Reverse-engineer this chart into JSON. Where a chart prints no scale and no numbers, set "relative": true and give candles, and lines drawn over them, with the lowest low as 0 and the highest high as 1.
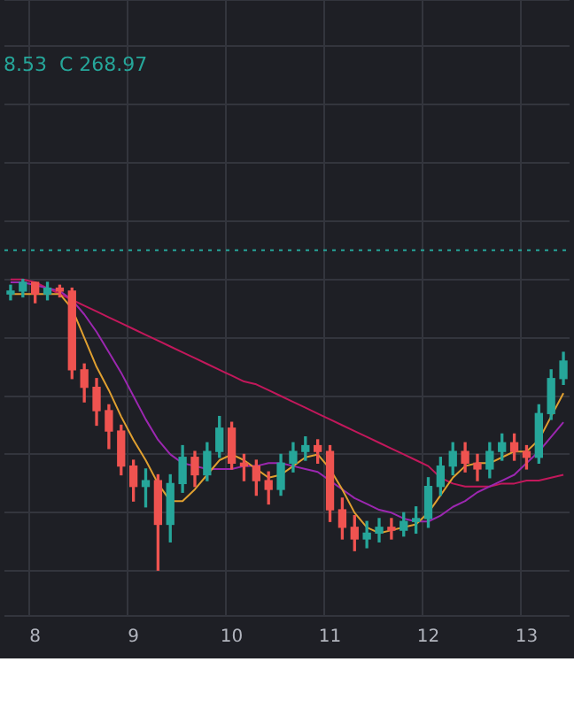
{
  "chart_data": {
    "type": "candlestick",
    "relative": true,
    "annotations": [
      "8.53  C 268.97"
    ],
    "categories": [
      null,
      null,
      "8",
      null,
      null,
      null,
      null,
      null,
      null,
      null,
      "9",
      null,
      null,
      null,
      null,
      null,
      null,
      null,
      "10",
      null,
      null,
      null,
      null,
      null,
      null,
      null,
      "11",
      null,
      null,
      null,
      null,
      null,
      null,
      null,
      "12",
      null,
      null,
      null,
      null,
      null,
      null,
      null,
      "13",
      null,
      null,
      null
    ],
    "ohlc": [
      [
        0.95,
        0.98,
        0.93,
        0.96
      ],
      [
        0.96,
        1.0,
        0.94,
        0.99
      ],
      [
        0.99,
        0.99,
        0.92,
        0.95
      ],
      [
        0.95,
        0.99,
        0.93,
        0.97
      ],
      [
        0.97,
        0.98,
        0.94,
        0.96
      ],
      [
        0.96,
        0.97,
        0.66,
        0.69
      ],
      [
        0.69,
        0.71,
        0.58,
        0.63
      ],
      [
        0.63,
        0.66,
        0.5,
        0.55
      ],
      [
        0.55,
        0.57,
        0.42,
        0.48
      ],
      [
        0.48,
        0.5,
        0.33,
        0.36
      ],
      [
        0.36,
        0.38,
        0.24,
        0.29
      ],
      [
        0.29,
        0.35,
        0.22,
        0.31
      ],
      [
        0.31,
        0.33,
        0.0,
        0.16
      ],
      [
        0.16,
        0.33,
        0.1,
        0.3
      ],
      [
        0.3,
        0.43,
        0.27,
        0.39
      ],
      [
        0.39,
        0.41,
        0.29,
        0.33
      ],
      [
        0.33,
        0.44,
        0.31,
        0.41
      ],
      [
        0.41,
        0.53,
        0.39,
        0.49
      ],
      [
        0.49,
        0.51,
        0.35,
        0.37
      ],
      [
        0.37,
        0.4,
        0.31,
        0.36
      ],
      [
        0.36,
        0.38,
        0.26,
        0.31
      ],
      [
        0.31,
        0.34,
        0.23,
        0.28
      ],
      [
        0.28,
        0.4,
        0.26,
        0.37
      ],
      [
        0.37,
        0.44,
        0.34,
        0.41
      ],
      [
        0.41,
        0.46,
        0.38,
        0.43
      ],
      [
        0.43,
        0.45,
        0.37,
        0.41
      ],
      [
        0.41,
        0.43,
        0.17,
        0.21
      ],
      [
        0.21,
        0.25,
        0.11,
        0.15
      ],
      [
        0.15,
        0.19,
        0.07,
        0.11
      ],
      [
        0.11,
        0.17,
        0.08,
        0.13
      ],
      [
        0.13,
        0.18,
        0.1,
        0.15
      ],
      [
        0.15,
        0.18,
        0.11,
        0.14
      ],
      [
        0.14,
        0.2,
        0.12,
        0.17
      ],
      [
        0.17,
        0.22,
        0.13,
        0.18
      ],
      [
        0.18,
        0.32,
        0.15,
        0.29
      ],
      [
        0.29,
        0.39,
        0.26,
        0.36
      ],
      [
        0.36,
        0.44,
        0.33,
        0.41
      ],
      [
        0.41,
        0.44,
        0.34,
        0.37
      ],
      [
        0.37,
        0.4,
        0.31,
        0.35
      ],
      [
        0.35,
        0.44,
        0.32,
        0.41
      ],
      [
        0.41,
        0.47,
        0.38,
        0.44
      ],
      [
        0.44,
        0.47,
        0.38,
        0.41
      ],
      [
        0.41,
        0.43,
        0.35,
        0.39
      ],
      [
        0.39,
        0.57,
        0.37,
        0.54
      ],
      [
        0.54,
        0.69,
        0.52,
        0.66
      ],
      [
        0.66,
        0.75,
        0.64,
        0.72
      ]
    ],
    "series": [
      {
        "type": "line",
        "color": "#e0a030",
        "values": [
          0.95,
          0.95,
          0.95,
          0.95,
          0.95,
          0.9,
          0.8,
          0.7,
          0.62,
          0.53,
          0.45,
          0.38,
          0.3,
          0.24,
          0.24,
          0.28,
          0.33,
          0.38,
          0.4,
          0.38,
          0.35,
          0.32,
          0.33,
          0.36,
          0.39,
          0.4,
          0.35,
          0.28,
          0.2,
          0.15,
          0.13,
          0.14,
          0.15,
          0.16,
          0.2,
          0.26,
          0.32,
          0.36,
          0.37,
          0.37,
          0.39,
          0.41,
          0.41,
          0.45,
          0.53,
          0.61
        ]
      },
      {
        "type": "line",
        "color": "#9c27b0",
        "values": [
          0.99,
          0.99,
          0.98,
          0.97,
          0.96,
          0.93,
          0.88,
          0.82,
          0.75,
          0.68,
          0.6,
          0.52,
          0.45,
          0.4,
          0.37,
          0.36,
          0.35,
          0.35,
          0.35,
          0.36,
          0.36,
          0.37,
          0.37,
          0.36,
          0.35,
          0.34,
          0.31,
          0.28,
          0.25,
          0.23,
          0.21,
          0.2,
          0.18,
          0.17,
          0.17,
          0.19,
          0.22,
          0.24,
          0.27,
          0.29,
          0.31,
          0.33,
          0.37,
          0.41,
          0.46,
          0.51
        ]
      },
      {
        "type": "line",
        "color": "#c2185b",
        "values": [
          1.0,
          1.0,
          0.99,
          0.97,
          0.95,
          0.93,
          0.91,
          0.89,
          0.87,
          0.85,
          0.83,
          0.81,
          0.79,
          0.77,
          0.75,
          0.73,
          0.71,
          0.69,
          0.67,
          0.65,
          0.64,
          0.62,
          0.6,
          0.58,
          0.56,
          0.54,
          0.52,
          0.5,
          0.48,
          0.46,
          0.44,
          0.42,
          0.4,
          0.38,
          0.36,
          0.32,
          0.3,
          0.29,
          0.29,
          0.29,
          0.3,
          0.3,
          0.31,
          0.31,
          0.32,
          0.33
        ]
      }
    ],
    "ref_lines": [
      {
        "axis": "y",
        "value": 1.1,
        "color": "#26a69a",
        "line_style": "dotted"
      }
    ],
    "grid": true,
    "legend": false,
    "marker": "none",
    "line_style": "solid"
  }
}
